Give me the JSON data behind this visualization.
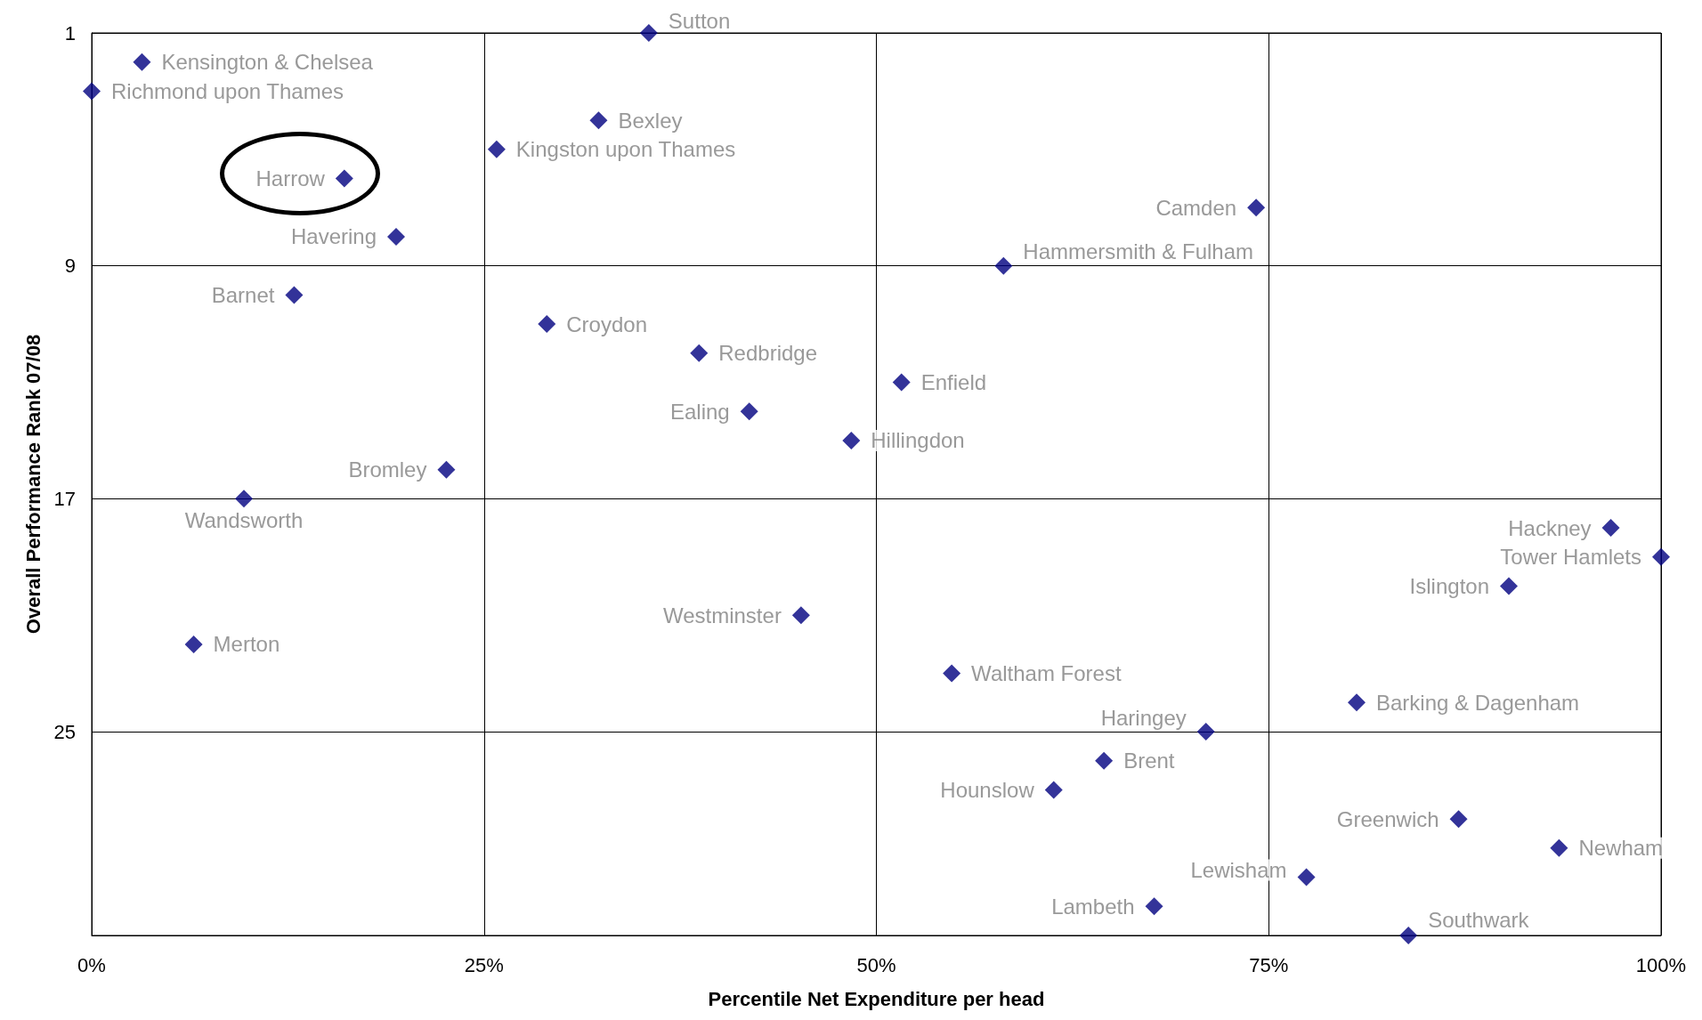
{
  "chart_data": {
    "type": "scatter",
    "xlabel": "Percentile Net Expenditure per head",
    "ylabel": "Overall Performance Rank 07/08",
    "xlim": [
      0,
      100
    ],
    "xticks": [
      {
        "value": 0,
        "label": "0%"
      },
      {
        "value": 25,
        "label": "25%"
      },
      {
        "value": 50,
        "label": "50%"
      },
      {
        "value": 75,
        "label": "75%"
      },
      {
        "value": 100,
        "label": "100%"
      }
    ],
    "ylim": [
      32,
      1
    ],
    "yticks": [
      1,
      9,
      17,
      25
    ],
    "grid": true,
    "marker": "diamond",
    "series": [
      {
        "color": "#000080",
        "x": [
          35.5,
          3.2,
          0,
          32.3,
          25.8,
          16.1,
          74.2,
          19.4,
          58.1,
          12.9,
          29.0,
          38.7,
          51.6,
          41.9,
          48.4,
          22.6,
          9.7,
          96.8,
          100,
          90.3,
          45.2,
          6.5,
          54.8,
          80.6,
          71.0,
          64.5,
          61.3,
          87.1,
          93.5,
          77.4,
          67.7,
          83.9
        ],
        "values": [
          1,
          2,
          3,
          4,
          5,
          6,
          7,
          8,
          9,
          10,
          11,
          12,
          13,
          14,
          15,
          16,
          17,
          18,
          19,
          20,
          21,
          22,
          23,
          24,
          25,
          26,
          27,
          28,
          29,
          30,
          31,
          32
        ],
        "value_labels": [
          "Sutton",
          "Kensington & Chelsea",
          "Richmond upon Thames",
          "Bexley",
          "Kingston upon Thames",
          "Harrow",
          "Camden",
          "Havering",
          "Hammersmith & Fulham",
          "Barnet",
          "Croydon",
          "Redbridge",
          "Enfield",
          "Ealing",
          "Hillingdon",
          "Bromley",
          "Wandsworth",
          "Hackney",
          "Tower Hamlets",
          "Islington",
          "Westminster",
          "Merton",
          "Waltham Forest",
          "Barking & Dagenham",
          "Haringey",
          "Brent",
          "Hounslow",
          "Greenwich",
          "Newham",
          "Lewisham",
          "Lambeth",
          "Southwark"
        ]
      }
    ]
  }
}
